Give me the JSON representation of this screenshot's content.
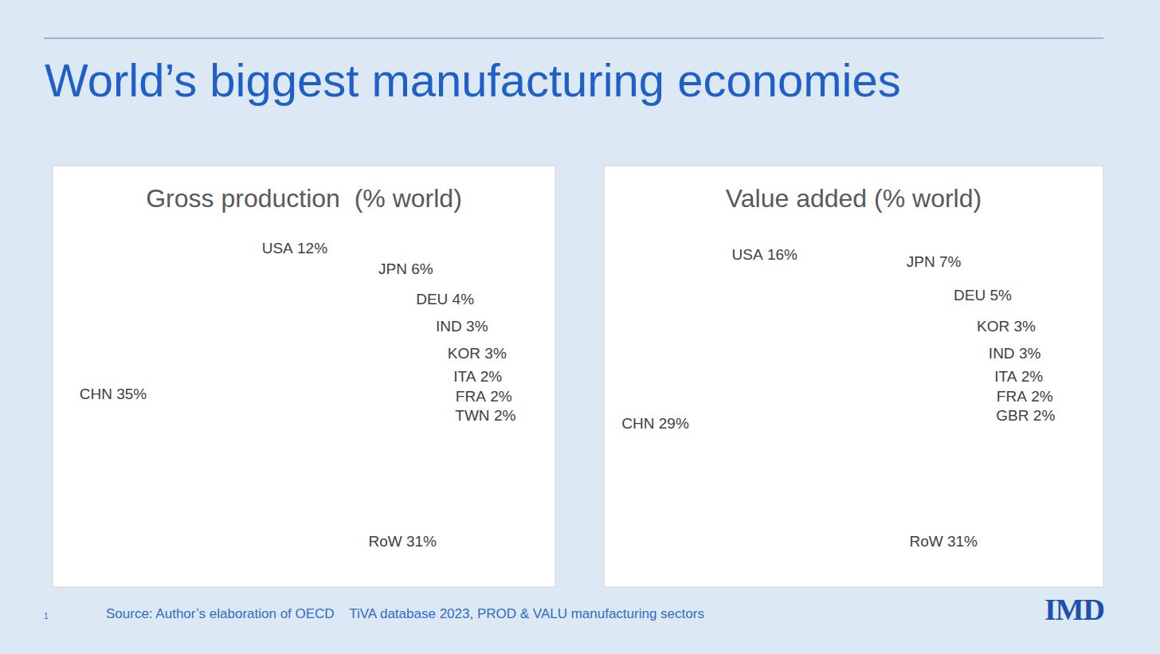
{
  "title": "World’s biggest manufacturing economies",
  "source": "Source: Author’s elaboration of OECD    TiVA database 2023, PROD & VALU manufacturing sectors",
  "page_number": 1,
  "logo": "IMD",
  "chart_data": [
    {
      "type": "pie",
      "title": "Gross production  (% world)",
      "categories": [
        "CHN",
        "USA",
        "JPN",
        "DEU",
        "IND",
        "KOR",
        "ITA",
        "FRA",
        "TWN",
        "RoW"
      ],
      "values": [
        35,
        12,
        6,
        4,
        3,
        3,
        2,
        2,
        2,
        31
      ],
      "value_labels": [
        "35%",
        "12%",
        "6%",
        "4%",
        "3%",
        "3%",
        "2%",
        "2%",
        "2%",
        "31%"
      ],
      "colors": [
        "#4472c4",
        "#e2823f",
        "#a5a5a5",
        "#fbc233",
        "#5b9bd5",
        "#70ad47",
        "#264478",
        "#9e480e",
        "#636363",
        "#937424"
      ],
      "data_labels": true
    },
    {
      "type": "pie",
      "title": "Value added (% world)",
      "categories": [
        "CHN",
        "USA",
        "JPN",
        "DEU",
        "KOR",
        "IND",
        "ITA",
        "FRA",
        "GBR",
        "RoW"
      ],
      "values": [
        29,
        16,
        7,
        5,
        3,
        3,
        2,
        2,
        2,
        31
      ],
      "value_labels": [
        "29%",
        "16%",
        "7%",
        "5%",
        "3%",
        "3%",
        "2%",
        "2%",
        "2%",
        "31%"
      ],
      "colors": [
        "#4472c4",
        "#e2823f",
        "#a5a5a5",
        "#fbc233",
        "#5b9bd5",
        "#70ad47",
        "#264478",
        "#9e480e",
        "#636363",
        "#335e92"
      ],
      "data_labels": true
    }
  ]
}
